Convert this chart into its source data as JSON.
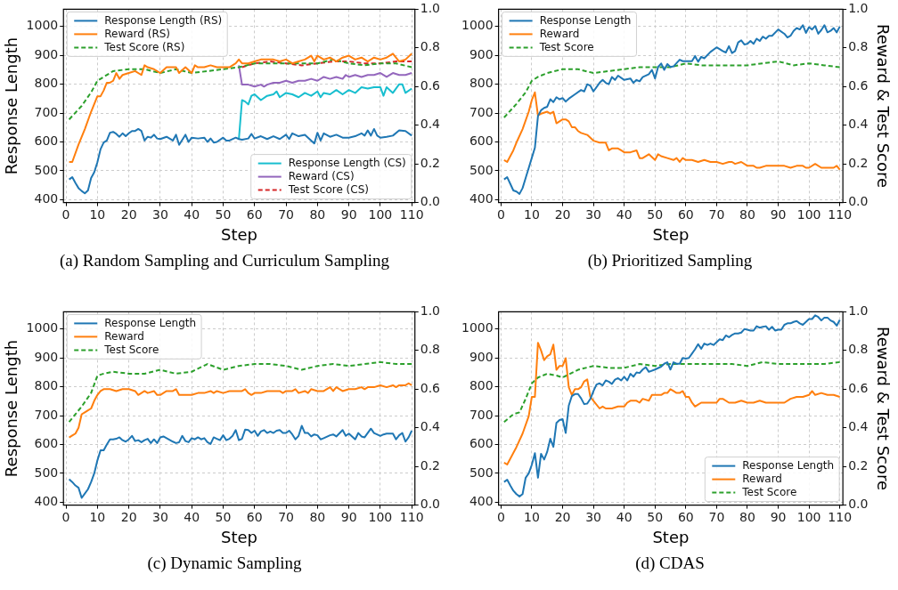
{
  "chart_data": [
    {
      "type": "line",
      "title": "(a) Random Sampling and Curriculum Sampling",
      "xlabel": "Step",
      "ylabel": "Response Length",
      "xlim": [
        -0.8,
        111
      ],
      "xticks": [
        0,
        10,
        20,
        30,
        40,
        50,
        60,
        70,
        80,
        90,
        100,
        110
      ],
      "ylim": [
        390,
        1060
      ],
      "yticks": [
        400,
        500,
        600,
        700,
        800,
        900,
        1000
      ],
      "y2lim": [
        0,
        1
      ],
      "y2ticks": [
        {
          "value": 0,
          "label": "0.0"
        },
        {
          "value": 0.2,
          "label": "0.2"
        },
        {
          "value": 0.4,
          "label": "0.4"
        },
        {
          "value": 0.6,
          "label": "0.6"
        },
        {
          "value": 0.8,
          "label": "0.8"
        },
        {
          "value": 1,
          "label": "1.0"
        }
      ],
      "grid": true,
      "legend": "top left",
      "marker": "none",
      "series": [
        {
          "name": "Response Length (RS)",
          "color": "#1f77b4",
          "x": [
            1,
            2,
            3,
            4,
            5,
            6,
            7,
            8,
            9,
            10,
            11,
            12,
            13,
            14,
            15,
            16,
            17,
            18,
            19,
            20,
            21,
            22,
            23,
            24,
            25,
            26,
            27,
            28,
            29,
            30,
            32,
            34,
            35,
            36,
            38,
            39,
            40,
            42,
            44,
            45,
            46,
            47,
            48,
            50,
            51,
            52,
            54,
            55,
            56,
            58,
            59,
            60,
            62,
            64,
            66,
            68,
            70,
            71,
            72,
            74,
            76,
            78,
            79,
            80,
            81,
            82,
            84,
            86,
            88,
            90,
            92,
            94,
            95,
            96,
            97,
            98,
            99,
            100,
            102,
            104,
            106,
            108,
            110
          ],
          "values": [
            470,
            478,
            458,
            440,
            430,
            422,
            432,
            475,
            495,
            530,
            575,
            598,
            605,
            632,
            635,
            628,
            618,
            630,
            620,
            630,
            638,
            638,
            645,
            638,
            605,
            618,
            615,
            625,
            612,
            610,
            618,
            605,
            625,
            590,
            625,
            600,
            615,
            612,
            615,
            600,
            612,
            598,
            600,
            615,
            605,
            605,
            615,
            610,
            608,
            612,
            628,
            612,
            620,
            610,
            620,
            610,
            625,
            610,
            630,
            620,
            625,
            605,
            595,
            632,
            605,
            630,
            618,
            625,
            615,
            615,
            620,
            630,
            622,
            640,
            622,
            645,
            622,
            615,
            618,
            622,
            640,
            638,
            622
          ]
        },
        {
          "name": "Reward (RS)",
          "color": "#ff7f0e",
          "axis": "y2",
          "x": [
            1,
            2,
            4,
            6,
            8,
            10,
            11,
            12,
            13,
            14,
            15,
            16,
            17,
            18,
            20,
            22,
            24,
            25,
            26,
            28,
            30,
            32,
            34,
            35,
            36,
            38,
            40,
            41,
            42,
            44,
            46,
            48,
            50,
            52,
            54,
            55,
            56,
            58,
            60,
            62,
            64,
            66,
            68,
            70,
            72,
            74,
            76,
            78,
            79,
            80,
            82,
            84,
            86,
            88,
            90,
            92,
            94,
            96,
            98,
            100,
            102,
            104,
            106,
            108,
            110
          ],
          "values": [
            0.21,
            0.21,
            0.3,
            0.38,
            0.47,
            0.55,
            0.55,
            0.58,
            0.62,
            0.62,
            0.63,
            0.67,
            0.64,
            0.66,
            0.67,
            0.68,
            0.66,
            0.71,
            0.7,
            0.69,
            0.67,
            0.7,
            0.7,
            0.7,
            0.67,
            0.7,
            0.67,
            0.71,
            0.7,
            0.7,
            0.71,
            0.7,
            0.7,
            0.7,
            0.72,
            0.74,
            0.72,
            0.72,
            0.73,
            0.74,
            0.74,
            0.74,
            0.73,
            0.74,
            0.72,
            0.73,
            0.74,
            0.76,
            0.73,
            0.76,
            0.74,
            0.75,
            0.73,
            0.75,
            0.76,
            0.74,
            0.75,
            0.73,
            0.75,
            0.74,
            0.75,
            0.77,
            0.73,
            0.74,
            0.77
          ]
        },
        {
          "name": "Test Score (RS)",
          "color": "#2ca02c",
          "axis": "y2",
          "line_style": "dashed",
          "x": [
            1,
            5,
            8,
            10,
            12,
            15,
            20,
            25,
            30,
            35,
            40,
            45,
            50,
            55,
            60,
            65,
            70,
            75,
            80,
            85,
            90,
            95,
            100,
            105,
            110
          ],
          "values": [
            0.43,
            0.5,
            0.57,
            0.63,
            0.65,
            0.68,
            0.69,
            0.69,
            0.67,
            0.69,
            0.67,
            0.68,
            0.69,
            0.7,
            0.72,
            0.72,
            0.72,
            0.72,
            0.72,
            0.74,
            0.72,
            0.71,
            0.72,
            0.72,
            0.7
          ]
        },
        {
          "name": "Response Length (CS)",
          "color": "#17becf",
          "x": [
            55,
            56,
            57,
            58,
            59,
            60,
            62,
            64,
            66,
            67,
            68,
            70,
            72,
            74,
            76,
            78,
            80,
            81,
            82,
            84,
            86,
            88,
            90,
            92,
            94,
            96,
            98,
            100,
            101,
            102,
            104,
            106,
            107,
            108,
            110
          ],
          "values": [
            610,
            745,
            740,
            730,
            760,
            765,
            745,
            760,
            765,
            775,
            755,
            770,
            765,
            755,
            770,
            760,
            775,
            755,
            770,
            765,
            780,
            765,
            780,
            770,
            790,
            785,
            790,
            790,
            760,
            790,
            770,
            800,
            800,
            770,
            785
          ]
        },
        {
          "name": "Reward (CS)",
          "color": "#9467bd",
          "axis": "y2",
          "x": [
            55,
            56,
            58,
            60,
            62,
            63,
            64,
            66,
            68,
            70,
            72,
            74,
            76,
            78,
            80,
            82,
            84,
            86,
            88,
            89,
            90,
            92,
            94,
            96,
            98,
            100,
            102,
            104,
            106,
            108,
            110
          ],
          "values": [
            0.71,
            0.61,
            0.61,
            0.6,
            0.61,
            0.6,
            0.61,
            0.62,
            0.62,
            0.63,
            0.62,
            0.63,
            0.63,
            0.64,
            0.63,
            0.65,
            0.64,
            0.65,
            0.64,
            0.66,
            0.65,
            0.66,
            0.65,
            0.66,
            0.66,
            0.67,
            0.65,
            0.67,
            0.66,
            0.66,
            0.67
          ]
        },
        {
          "name": "Test Score (CS)",
          "color": "#d62728",
          "axis": "y2",
          "line_style": "dashed",
          "x": [
            56,
            60,
            65,
            70,
            75,
            80,
            85,
            90,
            95,
            100,
            105,
            110
          ],
          "values": [
            0.7,
            0.72,
            0.73,
            0.72,
            0.71,
            0.72,
            0.73,
            0.73,
            0.72,
            0.72,
            0.73,
            0.73
          ]
        }
      ]
    },
    {
      "type": "line",
      "title": "(b) Prioritized Sampling",
      "xlabel": "Step",
      "y2label": "Reward & Test Score",
      "xlim": [
        -0.8,
        111
      ],
      "xticks": [
        0,
        10,
        20,
        30,
        40,
        50,
        60,
        70,
        80,
        90,
        100,
        110
      ],
      "ylim": [
        390,
        1060
      ],
      "yticks": [
        400,
        500,
        600,
        700,
        800,
        900,
        1000
      ],
      "y2lim": [
        0,
        1
      ],
      "y2ticks": [
        {
          "value": 0,
          "label": "0.0"
        },
        {
          "value": 0.2,
          "label": "0.2"
        },
        {
          "value": 0.4,
          "label": "0.4"
        },
        {
          "value": 0.6,
          "label": "0.6"
        },
        {
          "value": 0.8,
          "label": "0.8"
        },
        {
          "value": 1,
          "label": "1.0"
        }
      ],
      "grid": true,
      "legend": "top left",
      "marker": "none",
      "series": [
        {
          "name": "Response Length",
          "color": "#1f77b4",
          "x": [
            1,
            2,
            3,
            4,
            5,
            6,
            7,
            8,
            9,
            10,
            11,
            12,
            13,
            14,
            15,
            16,
            17,
            18,
            19,
            20,
            21,
            22,
            24,
            26,
            27,
            28,
            29,
            30,
            32,
            33,
            34,
            35,
            36,
            37,
            38,
            40,
            42,
            43,
            44,
            45,
            46,
            48,
            49,
            50,
            51,
            52,
            53,
            54,
            55,
            56,
            58,
            59,
            60,
            62,
            63,
            64,
            65,
            66,
            68,
            70,
            72,
            73,
            74,
            75,
            76,
            77,
            78,
            79,
            80,
            81,
            82,
            83,
            84,
            85,
            86,
            87,
            88,
            90,
            92,
            93,
            94,
            95,
            96,
            97,
            98,
            99,
            100,
            101,
            102,
            103,
            104,
            105,
            106,
            107,
            108,
            109,
            110
          ],
          "values": [
            470,
            478,
            455,
            432,
            428,
            420,
            440,
            475,
            510,
            545,
            580,
            690,
            710,
            718,
            722,
            748,
            738,
            755,
            748,
            752,
            740,
            750,
            765,
            780,
            775,
            800,
            795,
            775,
            805,
            815,
            805,
            800,
            825,
            815,
            830,
            815,
            820,
            805,
            815,
            810,
            825,
            835,
            850,
            820,
            860,
            872,
            850,
            870,
            860,
            862,
            885,
            880,
            880,
            880,
            898,
            878,
            895,
            890,
            912,
            928,
            915,
            910,
            932,
            908,
            915,
            945,
            952,
            938,
            940,
            950,
            940,
            958,
            950,
            965,
            958,
            968,
            968,
            990,
            975,
            962,
            968,
            985,
            995,
            990,
            1005,
            978,
            998,
            990,
            1002,
            975,
            988,
            1005,
            980,
            985,
            995,
            980,
            1000
          ]
        },
        {
          "name": "Reward",
          "color": "#ff7f0e",
          "axis": "y2",
          "x": [
            1,
            2,
            4,
            5,
            7,
            9,
            10,
            11,
            12,
            13,
            15,
            16,
            17,
            18,
            20,
            21,
            22,
            23,
            24,
            25,
            26,
            28,
            30,
            32,
            34,
            35,
            36,
            38,
            39,
            40,
            42,
            44,
            45,
            46,
            48,
            50,
            51,
            52,
            54,
            56,
            57,
            58,
            59,
            60,
            62,
            64,
            66,
            68,
            70,
            72,
            74,
            75,
            76,
            78,
            80,
            82,
            83,
            84,
            86,
            88,
            90,
            92,
            94,
            96,
            98,
            99,
            100,
            102,
            104,
            106,
            108,
            109,
            110
          ],
          "values": [
            0.22,
            0.21,
            0.27,
            0.31,
            0.38,
            0.47,
            0.53,
            0.57,
            0.45,
            0.46,
            0.47,
            0.46,
            0.47,
            0.41,
            0.43,
            0.43,
            0.42,
            0.39,
            0.39,
            0.37,
            0.36,
            0.35,
            0.32,
            0.31,
            0.31,
            0.27,
            0.28,
            0.28,
            0.27,
            0.26,
            0.26,
            0.27,
            0.23,
            0.23,
            0.25,
            0.22,
            0.25,
            0.24,
            0.23,
            0.22,
            0.23,
            0.21,
            0.23,
            0.22,
            0.22,
            0.21,
            0.22,
            0.21,
            0.21,
            0.2,
            0.21,
            0.21,
            0.2,
            0.21,
            0.19,
            0.19,
            0.18,
            0.18,
            0.19,
            0.19,
            0.19,
            0.19,
            0.18,
            0.19,
            0.19,
            0.18,
            0.18,
            0.2,
            0.18,
            0.18,
            0.18,
            0.19,
            0.17
          ]
        },
        {
          "name": "Test Score",
          "color": "#2ca02c",
          "axis": "y2",
          "line_style": "dashed",
          "x": [
            1,
            5,
            8,
            10,
            12,
            15,
            20,
            25,
            30,
            35,
            40,
            45,
            50,
            55,
            60,
            65,
            70,
            75,
            80,
            85,
            90,
            95,
            100,
            105,
            110
          ],
          "values": [
            0.44,
            0.51,
            0.57,
            0.63,
            0.65,
            0.67,
            0.69,
            0.69,
            0.67,
            0.68,
            0.69,
            0.7,
            0.7,
            0.7,
            0.72,
            0.71,
            0.71,
            0.71,
            0.71,
            0.72,
            0.73,
            0.71,
            0.72,
            0.71,
            0.7
          ]
        }
      ]
    },
    {
      "type": "line",
      "title": "(c) Dynamic Sampling",
      "xlabel": "Step",
      "ylabel": "Response Length",
      "xlim": [
        -0.8,
        111
      ],
      "xticks": [
        0,
        10,
        20,
        30,
        40,
        50,
        60,
        70,
        80,
        90,
        100,
        110
      ],
      "ylim": [
        390,
        1060
      ],
      "yticks": [
        400,
        500,
        600,
        700,
        800,
        900,
        1000
      ],
      "y2lim": [
        0,
        1
      ],
      "y2ticks": [
        {
          "value": 0,
          "label": "0.0"
        },
        {
          "value": 0.2,
          "label": "0.2"
        },
        {
          "value": 0.4,
          "label": "0.4"
        },
        {
          "value": 0.6,
          "label": "0.6"
        },
        {
          "value": 0.8,
          "label": "0.8"
        },
        {
          "value": 1,
          "label": "1.0"
        }
      ],
      "grid": true,
      "legend": "top left",
      "marker": "none",
      "series": [
        {
          "name": "Response Length",
          "color": "#1f77b4",
          "x": [
            1,
            2,
            3,
            4,
            5,
            6,
            7,
            8,
            9,
            10,
            11,
            12,
            13,
            14,
            15,
            16,
            17,
            18,
            19,
            20,
            21,
            22,
            23,
            24,
            25,
            26,
            27,
            28,
            29,
            30,
            31,
            32,
            34,
            35,
            36,
            37,
            38,
            39,
            40,
            41,
            42,
            43,
            44,
            45,
            46,
            47,
            48,
            49,
            50,
            51,
            52,
            53,
            54,
            55,
            56,
            57,
            58,
            59,
            60,
            61,
            62,
            63,
            64,
            65,
            66,
            67,
            68,
            69,
            70,
            71,
            72,
            73,
            74,
            75,
            76,
            77,
            78,
            79,
            80,
            81,
            82,
            84,
            85,
            86,
            88,
            89,
            90,
            91,
            92,
            93,
            94,
            95,
            97,
            98,
            100,
            101,
            102,
            104,
            105,
            106,
            107,
            108,
            109,
            110
          ],
          "values": [
            480,
            470,
            458,
            450,
            415,
            430,
            445,
            470,
            500,
            545,
            580,
            580,
            600,
            618,
            618,
            620,
            625,
            615,
            610,
            618,
            630,
            612,
            615,
            608,
            615,
            620,
            605,
            618,
            605,
            625,
            628,
            622,
            610,
            605,
            608,
            630,
            612,
            608,
            622,
            618,
            625,
            618,
            622,
            608,
            602,
            625,
            620,
            615,
            632,
            615,
            620,
            630,
            650,
            615,
            620,
            652,
            650,
            640,
            648,
            630,
            645,
            650,
            640,
            645,
            640,
            648,
            650,
            640,
            640,
            648,
            635,
            618,
            630,
            665,
            640,
            640,
            628,
            635,
            632,
            618,
            622,
            632,
            635,
            628,
            650,
            630,
            638,
            628,
            618,
            640,
            628,
            625,
            655,
            640,
            630,
            635,
            638,
            638,
            618,
            632,
            640,
            610,
            625,
            648
          ]
        },
        {
          "name": "Reward",
          "color": "#ff7f0e",
          "axis": "y2",
          "x": [
            1,
            2,
            3,
            4,
            5,
            6,
            7,
            8,
            9,
            10,
            11,
            12,
            14,
            16,
            18,
            20,
            22,
            23,
            24,
            25,
            26,
            28,
            29,
            30,
            32,
            34,
            35,
            36,
            38,
            40,
            42,
            44,
            46,
            47,
            48,
            50,
            52,
            54,
            56,
            57,
            58,
            59,
            60,
            62,
            64,
            66,
            68,
            69,
            70,
            72,
            73,
            74,
            76,
            77,
            78,
            80,
            82,
            84,
            85,
            86,
            88,
            90,
            92,
            94,
            95,
            96,
            98,
            100,
            102,
            104,
            105,
            106,
            108,
            109,
            110
          ],
          "values": [
            0.35,
            0.36,
            0.37,
            0.4,
            0.47,
            0.48,
            0.49,
            0.5,
            0.54,
            0.57,
            0.59,
            0.6,
            0.6,
            0.59,
            0.6,
            0.6,
            0.59,
            0.57,
            0.58,
            0.59,
            0.58,
            0.59,
            0.57,
            0.57,
            0.59,
            0.59,
            0.6,
            0.57,
            0.57,
            0.57,
            0.58,
            0.58,
            0.59,
            0.58,
            0.59,
            0.58,
            0.59,
            0.59,
            0.59,
            0.6,
            0.58,
            0.57,
            0.58,
            0.58,
            0.59,
            0.59,
            0.59,
            0.58,
            0.59,
            0.59,
            0.6,
            0.58,
            0.59,
            0.58,
            0.6,
            0.59,
            0.59,
            0.61,
            0.59,
            0.61,
            0.59,
            0.6,
            0.6,
            0.61,
            0.6,
            0.61,
            0.61,
            0.62,
            0.61,
            0.62,
            0.61,
            0.62,
            0.62,
            0.63,
            0.62
          ]
        },
        {
          "name": "Test Score",
          "color": "#2ca02c",
          "axis": "y2",
          "line_style": "dashed",
          "x": [
            1,
            5,
            8,
            10,
            12,
            15,
            20,
            25,
            30,
            35,
            40,
            45,
            50,
            55,
            60,
            65,
            70,
            75,
            80,
            85,
            90,
            95,
            100,
            105,
            110
          ],
          "values": [
            0.43,
            0.51,
            0.58,
            0.67,
            0.68,
            0.69,
            0.68,
            0.68,
            0.7,
            0.68,
            0.69,
            0.73,
            0.7,
            0.72,
            0.73,
            0.73,
            0.72,
            0.7,
            0.72,
            0.73,
            0.72,
            0.73,
            0.74,
            0.73,
            0.73
          ]
        }
      ]
    },
    {
      "type": "line",
      "title": "(d) CDAS",
      "xlabel": "Step",
      "y2label": "Reward & Test Score",
      "xlim": [
        -0.8,
        111
      ],
      "xticks": [
        0,
        10,
        20,
        30,
        40,
        50,
        60,
        70,
        80,
        90,
        100,
        110
      ],
      "ylim": [
        390,
        1060
      ],
      "yticks": [
        400,
        500,
        600,
        700,
        800,
        900,
        1000
      ],
      "y2lim": [
        0,
        1
      ],
      "y2ticks": [
        {
          "value": 0,
          "label": "0.0"
        },
        {
          "value": 0.2,
          "label": "0.2"
        },
        {
          "value": 0.4,
          "label": "0.4"
        },
        {
          "value": 0.6,
          "label": "0.6"
        },
        {
          "value": 0.8,
          "label": "0.8"
        },
        {
          "value": 1,
          "label": "1.0"
        }
      ],
      "grid": true,
      "legend": "bottom right",
      "marker": "none",
      "series": [
        {
          "name": "Response Length",
          "color": "#1f77b4",
          "x": [
            1,
            2,
            3,
            4,
            5,
            6,
            7,
            8,
            9,
            10,
            11,
            12,
            13,
            14,
            15,
            16,
            17,
            18,
            19,
            20,
            21,
            22,
            23,
            24,
            25,
            26,
            27,
            28,
            29,
            30,
            31,
            32,
            33,
            34,
            35,
            36,
            37,
            38,
            39,
            40,
            41,
            42,
            43,
            44,
            45,
            46,
            47,
            48,
            50,
            52,
            53,
            54,
            55,
            56,
            57,
            58,
            59,
            60,
            61,
            62,
            63,
            64,
            65,
            66,
            67,
            68,
            69,
            70,
            71,
            72,
            73,
            74,
            75,
            76,
            77,
            78,
            79,
            80,
            81,
            82,
            83,
            84,
            85,
            86,
            87,
            88,
            89,
            90,
            91,
            92,
            93,
            94,
            95,
            96,
            97,
            98,
            99,
            100,
            101,
            102,
            103,
            104,
            105,
            106,
            107,
            108,
            109,
            110
          ],
          "values": [
            470,
            478,
            458,
            440,
            428,
            420,
            428,
            485,
            500,
            530,
            570,
            485,
            568,
            548,
            575,
            620,
            592,
            675,
            685,
            688,
            640,
            735,
            768,
            775,
            775,
            760,
            740,
            742,
            758,
            785,
            808,
            812,
            805,
            822,
            818,
            810,
            825,
            830,
            822,
            835,
            822,
            845,
            835,
            850,
            848,
            860,
            868,
            852,
            860,
            870,
            880,
            885,
            860,
            885,
            880,
            880,
            900,
            898,
            900,
            915,
            930,
            948,
            932,
            950,
            945,
            950,
            945,
            955,
            965,
            962,
            978,
            972,
            980,
            985,
            985,
            988,
            1000,
            998,
            995,
            995,
            1010,
            1005,
            1008,
            1010,
            998,
            1008,
            995,
            998,
            998,
            1015,
            1020,
            1020,
            1025,
            1028,
            1020,
            1015,
            1025,
            1035,
            1035,
            1048,
            1042,
            1030,
            1040,
            1040,
            1030,
            1025,
            1012,
            1032
          ]
        },
        {
          "name": "Reward",
          "color": "#ff7f0e",
          "axis": "y2",
          "x": [
            1,
            2,
            3,
            5,
            7,
            9,
            10,
            11,
            12,
            13,
            14,
            15,
            16,
            17,
            18,
            19,
            20,
            21,
            22,
            23,
            24,
            25,
            26,
            27,
            28,
            29,
            30,
            32,
            33,
            34,
            36,
            38,
            40,
            41,
            42,
            44,
            45,
            46,
            48,
            49,
            50,
            52,
            53,
            54,
            55,
            56,
            57,
            58,
            59,
            60,
            61,
            62,
            63,
            64,
            65,
            66,
            67,
            68,
            70,
            71,
            72,
            74,
            76,
            78,
            80,
            81,
            82,
            84,
            86,
            88,
            90,
            92,
            94,
            96,
            98,
            100,
            101,
            102,
            104,
            106,
            108,
            110
          ],
          "values": [
            0.22,
            0.21,
            0.24,
            0.3,
            0.37,
            0.46,
            0.56,
            0.56,
            0.84,
            0.8,
            0.75,
            0.77,
            0.78,
            0.83,
            0.7,
            0.72,
            0.72,
            0.76,
            0.61,
            0.57,
            0.6,
            0.6,
            0.61,
            0.64,
            0.65,
            0.56,
            0.54,
            0.5,
            0.51,
            0.5,
            0.5,
            0.51,
            0.51,
            0.53,
            0.54,
            0.54,
            0.53,
            0.55,
            0.54,
            0.57,
            0.57,
            0.57,
            0.58,
            0.58,
            0.6,
            0.59,
            0.58,
            0.58,
            0.59,
            0.56,
            0.56,
            0.53,
            0.51,
            0.52,
            0.53,
            0.53,
            0.53,
            0.53,
            0.53,
            0.55,
            0.55,
            0.53,
            0.53,
            0.54,
            0.53,
            0.53,
            0.53,
            0.54,
            0.53,
            0.53,
            0.53,
            0.53,
            0.55,
            0.56,
            0.56,
            0.57,
            0.59,
            0.57,
            0.58,
            0.57,
            0.57,
            0.56
          ]
        },
        {
          "name": "Test Score",
          "color": "#2ca02c",
          "axis": "y2",
          "line_style": "dashed",
          "x": [
            1,
            4,
            6,
            8,
            10,
            12,
            15,
            18,
            20,
            25,
            30,
            35,
            40,
            45,
            50,
            55,
            60,
            65,
            70,
            75,
            80,
            85,
            90,
            95,
            100,
            105,
            110
          ],
          "values": [
            0.43,
            0.47,
            0.48,
            0.55,
            0.63,
            0.66,
            0.68,
            0.67,
            0.66,
            0.7,
            0.72,
            0.71,
            0.71,
            0.73,
            0.72,
            0.73,
            0.73,
            0.73,
            0.73,
            0.73,
            0.72,
            0.74,
            0.73,
            0.73,
            0.73,
            0.73,
            0.74
          ]
        }
      ]
    }
  ]
}
